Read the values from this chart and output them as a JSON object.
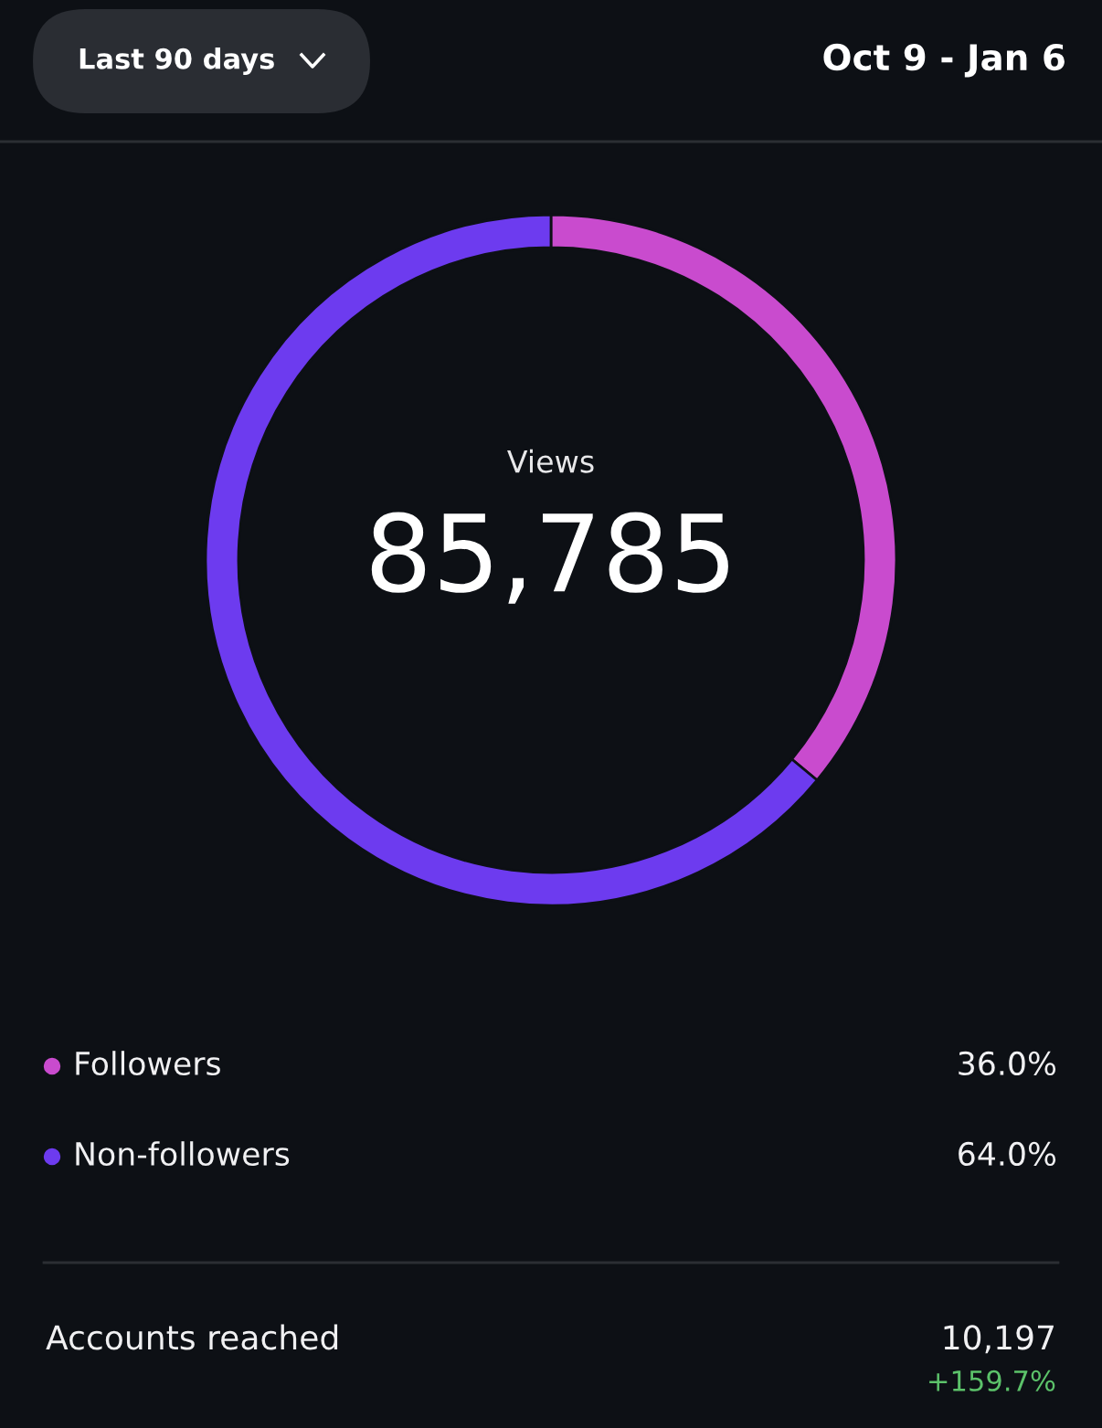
{
  "chart_data": {
    "type": "donut",
    "title": "Views",
    "subtitle": "85,785",
    "categories": [
      "Followers",
      "Non-followers"
    ],
    "values": [
      36.0,
      64.0
    ],
    "colors": [
      "#c94bce",
      "#6d3bef"
    ],
    "value_labels": [
      "36.0%",
      "64.0%"
    ],
    "legend": "bottom",
    "annotations": [
      "Last 90 days",
      "Oct 9 - Jan 6",
      "Accounts reached",
      "10,197",
      "+159.7%"
    ]
  }
}
